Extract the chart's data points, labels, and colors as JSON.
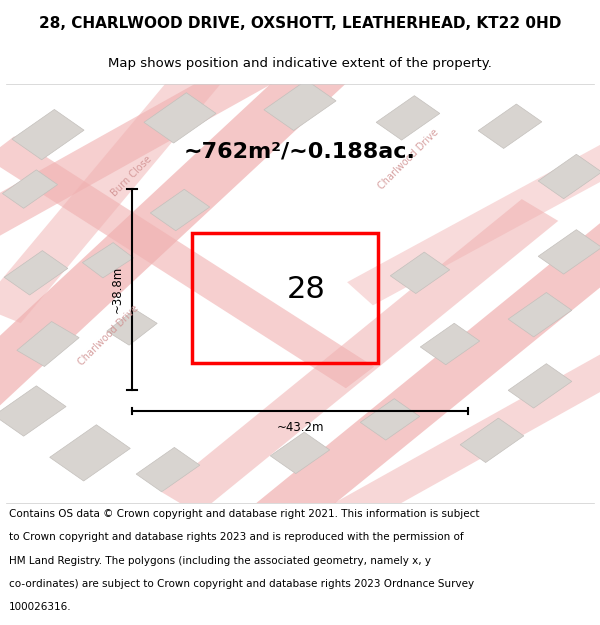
{
  "title": "28, CHARLWOOD DRIVE, OXSHOTT, LEATHERHEAD, KT22 0HD",
  "subtitle": "Map shows position and indicative extent of the property.",
  "area_text": "~762m²/~0.188ac.",
  "number": "28",
  "dim_h": "~38.8m",
  "dim_w": "~43.2m",
  "footer_lines": [
    "Contains OS data © Crown copyright and database right 2021. This information is subject",
    "to Crown copyright and database rights 2023 and is reproduced with the permission of",
    "HM Land Registry. The polygons (including the associated geometry, namely x, y",
    "co-ordinates) are subject to Crown copyright and database rights 2023 Ordnance Survey",
    "100026316."
  ],
  "map_bg": "#f0ece8",
  "road_color": "#f0b0b0",
  "building_color": "#d8d4d0",
  "building_edge": "#c4c0bc",
  "red_plot": "#ff0000",
  "title_fontsize": 11,
  "subtitle_fontsize": 9.5,
  "area_fontsize": 16,
  "number_fontsize": 22,
  "dim_fontsize": 8.5,
  "footer_fontsize": 7.5,
  "road_label_color": "#d09090",
  "road_label_fontsize": 7
}
